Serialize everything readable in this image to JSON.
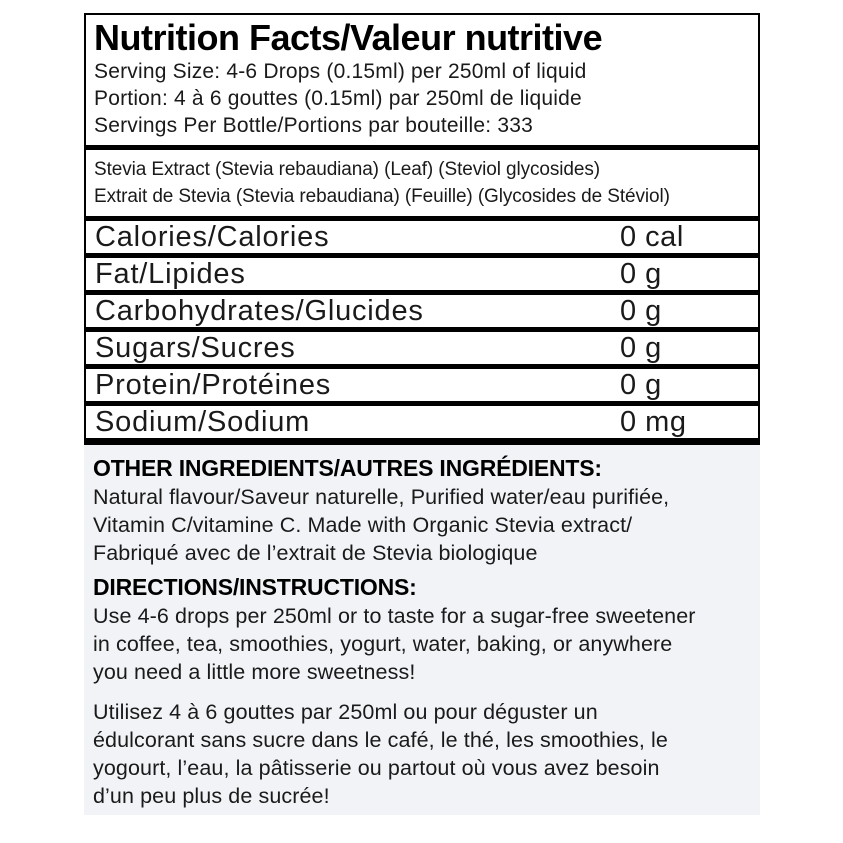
{
  "colors": {
    "panel-bg": "#f2f3f6",
    "border": "#000000",
    "text": "#1a1a1a"
  },
  "nutrition_table": {
    "title": "Nutrition Facts/Valeur nutritive",
    "serving_lines": [
      "Serving Size: 4-6 Drops (0.15ml) per 250ml of liquid",
      "Portion: 4 à 6 gouttes (0.15ml) par 250ml de liquide",
      "Servings Per Bottle/Portions par bouteille: 333"
    ],
    "source_lines": [
      "Stevia Extract (Stevia rebaudiana) (Leaf) (Steviol glycosides)",
      "Extrait de Stevia (Stevia rebaudiana) (Feuille) (Glycosides de Stéviol)"
    ],
    "rows": [
      {
        "name": "Calories/Calories",
        "value": "0 cal"
      },
      {
        "name": "Fat/Lipides",
        "value": "0 g"
      },
      {
        "name": "Carbohydrates/Glucides",
        "value": "0 g"
      },
      {
        "name": "Sugars/Sucres",
        "value": "0 g"
      },
      {
        "name": "Protein/Protéines",
        "value": "0 g"
      },
      {
        "name": "Sodium/Sodium",
        "value": "0 mg"
      }
    ]
  },
  "other_ingredients": {
    "heading": "OTHER INGREDIENTS/AUTRES INGRÉDIENTS:",
    "lines": [
      "Natural flavour/Saveur naturelle, Purified water/eau purifiée,",
      "Vitamin C/vitamine C. Made with Organic Stevia extract/",
      "Fabriqué avec de l’extrait de Stevia biologique"
    ]
  },
  "directions": {
    "heading": "DIRECTIONS/INSTRUCTIONS:",
    "en_lines": [
      "Use 4-6 drops per 250ml or to taste for a sugar-free sweetener",
      "in coffee, tea, smoothies, yogurt, water, baking, or anywhere",
      "you need a little more sweetness!"
    ],
    "fr_lines": [
      "Utilisez 4 à 6 gouttes par 250ml ou pour déguster un",
      "édulcorant sans sucre dans le café, le thé, les smoothies, le",
      "yogourt, l’eau, la pâtisserie ou partout où vous avez besoin",
      "d’un peu plus de sucrée!"
    ]
  }
}
